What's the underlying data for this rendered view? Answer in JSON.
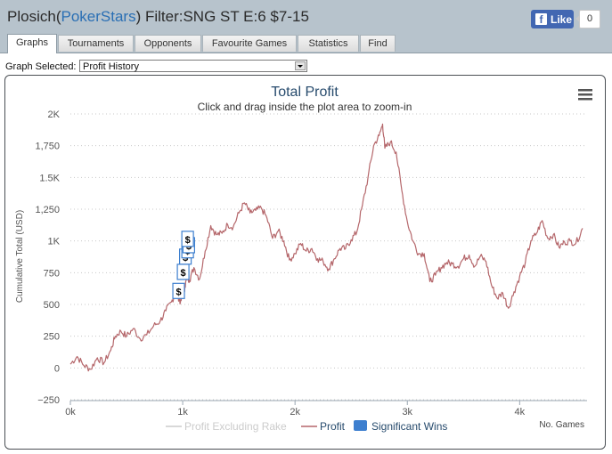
{
  "header": {
    "player": "Plosich",
    "open_paren": "(",
    "site": "PokerStars",
    "close_paren": ")",
    "filter": " Filter:SNG ST E:6 $7-15",
    "like_label": "Like",
    "like_count": "0"
  },
  "tabs": [
    {
      "label": "Graphs",
      "active": true
    },
    {
      "label": "Tournaments",
      "active": false
    },
    {
      "label": "Opponents",
      "active": false
    },
    {
      "label": "Favourite Games",
      "active": false
    },
    {
      "label": "Statistics",
      "active": false
    },
    {
      "label": "Find",
      "active": false
    }
  ],
  "graph_selector": {
    "label": "Graph Selected:",
    "value": "Profit History"
  },
  "chart_data": {
    "type": "line",
    "title": "Total Profit",
    "subtitle": "Click and drag inside the plot area to zoom-in",
    "xlabel": "No. Games",
    "ylabel": "Cumulative Total (USD)",
    "xlim": [
      0,
      4600
    ],
    "ylim": [
      -250,
      2000
    ],
    "x_ticks": [
      0,
      1000,
      2000,
      3000,
      4000
    ],
    "x_tick_labels": [
      "0k",
      "1k",
      "2k",
      "3k",
      "4k"
    ],
    "y_ticks": [
      -250,
      0,
      250,
      500,
      750,
      1000,
      1250,
      1500,
      1750,
      2000
    ],
    "y_tick_labels": [
      "−250",
      "0",
      "250",
      "500",
      "750",
      "1K",
      "1,250",
      "1.5K",
      "1,750",
      "2K"
    ],
    "grid": true,
    "legend_position": "bottom-center",
    "series": [
      {
        "name": "Profit",
        "color": "#b5676b",
        "x": [
          0,
          60,
          120,
          180,
          240,
          300,
          360,
          400,
          450,
          500,
          560,
          620,
          680,
          740,
          800,
          850,
          900,
          940,
          960,
          980,
          1000,
          1020,
          1040,
          1060,
          1100,
          1150,
          1200,
          1250,
          1300,
          1350,
          1400,
          1450,
          1500,
          1550,
          1600,
          1650,
          1700,
          1750,
          1800,
          1850,
          1900,
          1950,
          2000,
          2050,
          2100,
          2150,
          2200,
          2250,
          2300,
          2350,
          2400,
          2450,
          2500,
          2550,
          2600,
          2650,
          2700,
          2750,
          2780,
          2800,
          2850,
          2900,
          2950,
          3000,
          3050,
          3100,
          3150,
          3200,
          3250,
          3300,
          3350,
          3400,
          3450,
          3500,
          3550,
          3600,
          3650,
          3700,
          3750,
          3800,
          3850,
          3900,
          3950,
          4000,
          4050,
          4100,
          4150,
          4200,
          4250,
          4300,
          4350,
          4400,
          4450,
          4500,
          4560
        ],
        "values": [
          30,
          90,
          20,
          -10,
          80,
          40,
          140,
          250,
          290,
          250,
          310,
          230,
          260,
          330,
          370,
          450,
          520,
          600,
          560,
          520,
          560,
          640,
          720,
          690,
          790,
          700,
          920,
          1120,
          1050,
          1060,
          1130,
          1110,
          1220,
          1300,
          1220,
          1240,
          1260,
          1180,
          1020,
          1080,
          1000,
          850,
          900,
          980,
          920,
          940,
          860,
          840,
          780,
          860,
          940,
          940,
          1010,
          1070,
          1280,
          1500,
          1750,
          1830,
          1920,
          1730,
          1780,
          1700,
          1400,
          1150,
          1000,
          900,
          900,
          680,
          730,
          790,
          830,
          820,
          800,
          860,
          890,
          800,
          880,
          840,
          650,
          550,
          590,
          470,
          600,
          720,
          830,
          1000,
          1060,
          1160,
          1020,
          1050,
          950,
          990,
          1000,
          980,
          1100
        ]
      },
      {
        "name": "Profit Excluding Rake",
        "color": "#cccccc",
        "visible": false
      },
      {
        "name": "Significant Wins",
        "color": "#3d7fcf",
        "type": "flags",
        "flag_text": "$",
        "points": [
          {
            "x": 960,
            "y": 610
          },
          {
            "x": 1000,
            "y": 760
          },
          {
            "x": 1020,
            "y": 880
          },
          {
            "x": 1040,
            "y": 930
          },
          {
            "x": 1050,
            "y": 970
          },
          {
            "x": 1040,
            "y": 1020
          }
        ]
      }
    ],
    "legend": [
      "Profit Excluding Rake",
      "Profit",
      "Significant Wins"
    ]
  }
}
